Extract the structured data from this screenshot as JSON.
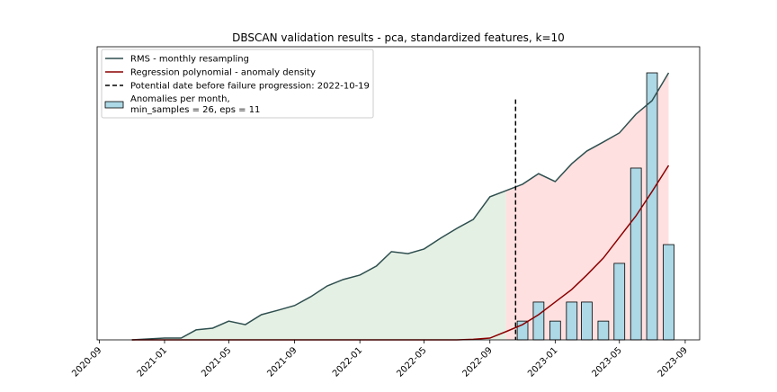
{
  "chart_data": {
    "type": "line",
    "title": "DBSCAN validation results - pca, standardized features, k=10",
    "x": [
      "2020-11",
      "2020-12",
      "2021-01",
      "2021-02",
      "2021-03",
      "2021-04",
      "2021-05",
      "2021-06",
      "2021-07",
      "2021-08",
      "2021-09",
      "2021-10",
      "2021-11",
      "2021-12",
      "2022-01",
      "2022-02",
      "2022-03",
      "2022-04",
      "2022-05",
      "2022-06",
      "2022-07",
      "2022-08",
      "2022-09",
      "2022-10",
      "2022-11",
      "2022-12",
      "2023-01",
      "2023-02",
      "2023-03",
      "2023-04",
      "2023-05",
      "2023-06",
      "2023-07",
      "2023-08"
    ],
    "series": [
      {
        "name": "RMS - monthly resampling",
        "color": "#2f4f4f",
        "values": [
          0,
          0.3,
          0.6,
          0.6,
          3.4,
          4,
          6.4,
          5.2,
          8.6,
          10.1,
          11.7,
          14.7,
          18.4,
          20.6,
          22.1,
          25.2,
          30.1,
          29.4,
          31,
          34.7,
          38,
          41.1,
          48.8,
          50.9,
          53.1,
          56.7,
          54,
          60.1,
          64.4,
          67.5,
          70.6,
          77,
          81.6,
          91.1
        ]
      },
      {
        "name": "Regression polynomial - anomaly density",
        "color": "#8b0000",
        "values": [
          0,
          0,
          0,
          0,
          0,
          0,
          0,
          0,
          0,
          0,
          0,
          0,
          0,
          0,
          0,
          0,
          0,
          0,
          0,
          0,
          0,
          0.2,
          0.6,
          2.8,
          5.2,
          8.6,
          12.9,
          17.2,
          22.1,
          27.9,
          35,
          42.3,
          50.6,
          59.5
        ]
      }
    ],
    "vline": {
      "name": "Potential date before failure progression: 2022-10-19",
      "x": "2022-10-19",
      "color": "#000000"
    },
    "bars": {
      "name": "Anomalies per month,\nmin_samples = 26, eps = 11",
      "color": "#add8e6",
      "x": [
        "2022-11",
        "2022-12",
        "2023-01",
        "2023-02",
        "2023-03",
        "2023-04",
        "2023-05",
        "2023-06",
        "2023-07",
        "2023-08"
      ],
      "values": [
        6.4,
        12.9,
        6.4,
        12.9,
        12.9,
        6.4,
        26.1,
        58.6,
        91.1,
        32.5
      ]
    },
    "fill_colors": [
      "#e5f0e5",
      "#ffe0e0"
    ],
    "xlim": [
      "2020-08-28",
      "2023-09-28"
    ],
    "ylim": [
      0,
      100
    ],
    "xticks": [
      "2020-09",
      "2021-01",
      "2021-05",
      "2021-09",
      "2022-01",
      "2022-05",
      "2022-09",
      "2023-01",
      "2023-05",
      "2023-09"
    ],
    "legend": "upper left"
  }
}
